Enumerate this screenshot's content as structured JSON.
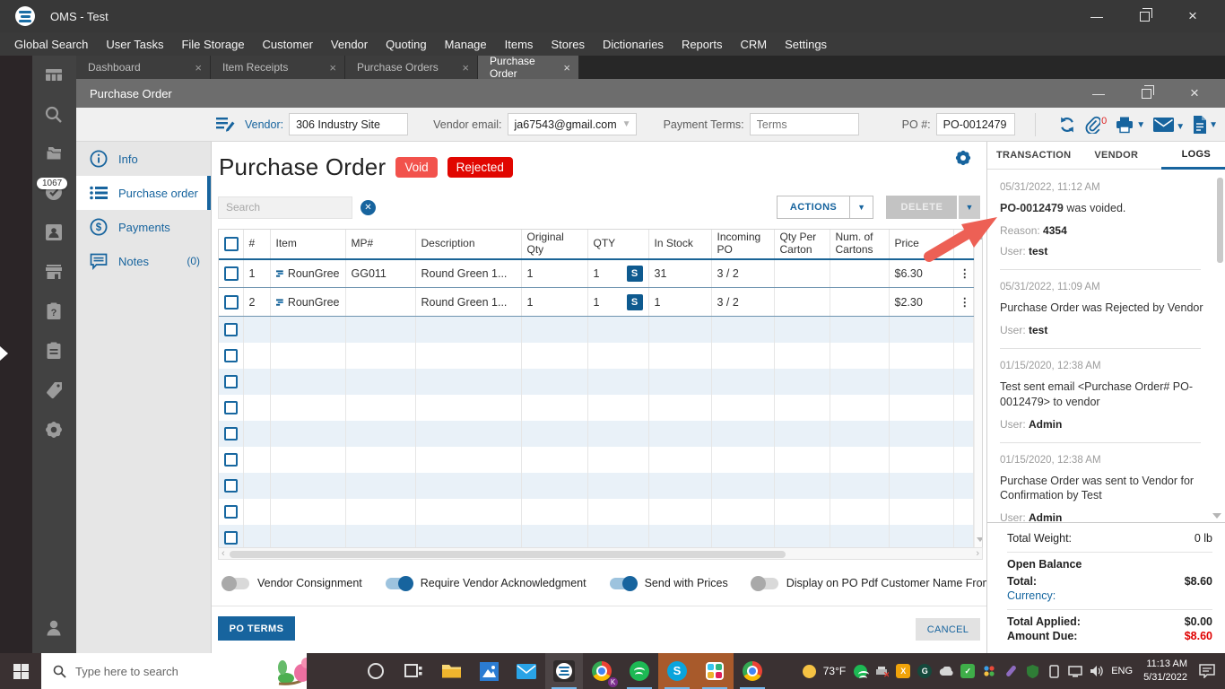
{
  "app": {
    "title": "OMS - Test"
  },
  "menu": {
    "items": [
      "Global Search",
      "User Tasks",
      "File Storage",
      "Customer",
      "Vendor",
      "Quoting",
      "Manage",
      "Items",
      "Stores",
      "Dictionaries",
      "Reports",
      "CRM",
      "Settings"
    ]
  },
  "tabs": {
    "items": [
      {
        "label": "Dashboard"
      },
      {
        "label": "Item Receipts"
      },
      {
        "label": "Purchase Orders"
      },
      {
        "label": "Purchase Order"
      }
    ]
  },
  "sidebar": {
    "task_badge": "1067"
  },
  "inner": {
    "title": "Purchase Order"
  },
  "form": {
    "vendor_label": "Vendor:",
    "vendor_value": "306 Industry Site",
    "email_label": "Vendor email:",
    "email_value": "ja67543@gmail.com",
    "terms_label": "Payment Terms:",
    "terms_placeholder": "Terms",
    "po_label": "PO #:",
    "po_value": "PO-0012479",
    "attachments_count": "0"
  },
  "nav": {
    "info": "Info",
    "purchase_order": "Purchase order",
    "payments": "Payments",
    "notes": "Notes",
    "notes_count": "(0)"
  },
  "main": {
    "title": "Purchase Order",
    "badge_void": "Void",
    "badge_rejected": "Rejected",
    "search_placeholder": "Search",
    "actions_label": "ACTIONS",
    "delete_label": "DELETE",
    "table": {
      "columns": [
        "#",
        "Item",
        "MP#",
        "Description",
        "Original Qty",
        "QTY",
        "In Stock",
        "Incoming PO",
        "Qty Per Carton",
        "Num. of Cartons",
        "Price"
      ],
      "rows": [
        {
          "num": "1",
          "item": "RounGree",
          "mp": "GG011",
          "desc": "Round Green 1...",
          "oqty": "1",
          "qty": "1",
          "badge": "S",
          "stock": "31",
          "incoming": "3 / 2",
          "qty_per_carton": "",
          "num_cartons": "",
          "price": "$6.30"
        },
        {
          "num": "2",
          "item": "RounGree",
          "mp": "",
          "desc": "Round Green 1...",
          "oqty": "1",
          "qty": "1",
          "badge": "S",
          "stock": "1",
          "incoming": "3 / 2",
          "qty_per_carton": "",
          "num_cartons": "",
          "price": "$2.30"
        }
      ],
      "empty_row_count": 9
    },
    "toggles": [
      {
        "label": "Vendor Consignment",
        "on": false
      },
      {
        "label": "Require Vendor Acknowledgment",
        "on": true
      },
      {
        "label": "Send with Prices",
        "on": true
      },
      {
        "label": "Display on PO Pdf Customer Name From Linked SO",
        "on": false
      }
    ],
    "po_terms_label": "PO TERMS",
    "cancel_label": "CANCEL"
  },
  "panel": {
    "tabs": {
      "transaction": "TRANSACTION",
      "vendor": "VENDOR",
      "logs": "LOGS"
    },
    "logs": [
      {
        "date": "05/31/2022, 11:12 AM",
        "bold": "PO-0012479",
        "rest": " was voided.",
        "reason_label": "Reason:",
        "reason_value": "4354",
        "user_label": "User:",
        "user": "test"
      },
      {
        "date": "05/31/2022, 11:09 AM",
        "message": "Purchase Order was Rejected by Vendor",
        "user_label": "User:",
        "user": "test"
      },
      {
        "date": "01/15/2020, 12:38 AM",
        "message": "Test sent email <Purchase Order# PO-0012479> to vendor",
        "user_label": "User:",
        "user": "Admin"
      },
      {
        "date": "01/15/2020, 12:38 AM",
        "message": "Purchase Order was sent to Vendor for Confirmation by Test",
        "user_label": "User:",
        "user": "Admin"
      }
    ],
    "totals": {
      "weight_label": "Total Weight:",
      "weight_value": "0 lb",
      "open_balance_label": "Open Balance",
      "total_label": "Total:",
      "total_value": "$8.60",
      "currency_label": "Currency:",
      "applied_label": "Total Applied:",
      "applied_value": "$0.00",
      "due_label": "Amount Due:",
      "due_value": "$8.60"
    }
  },
  "taskbar": {
    "search_placeholder": "Type here to search",
    "temperature": "73°F",
    "language": "ENG",
    "time": "11:13 AM",
    "date": "5/31/2022"
  },
  "colors": {
    "accent": "#17649e",
    "void_badge": "#f2524c",
    "rejected_badge": "#e10600",
    "amount_due": "#e00000"
  }
}
